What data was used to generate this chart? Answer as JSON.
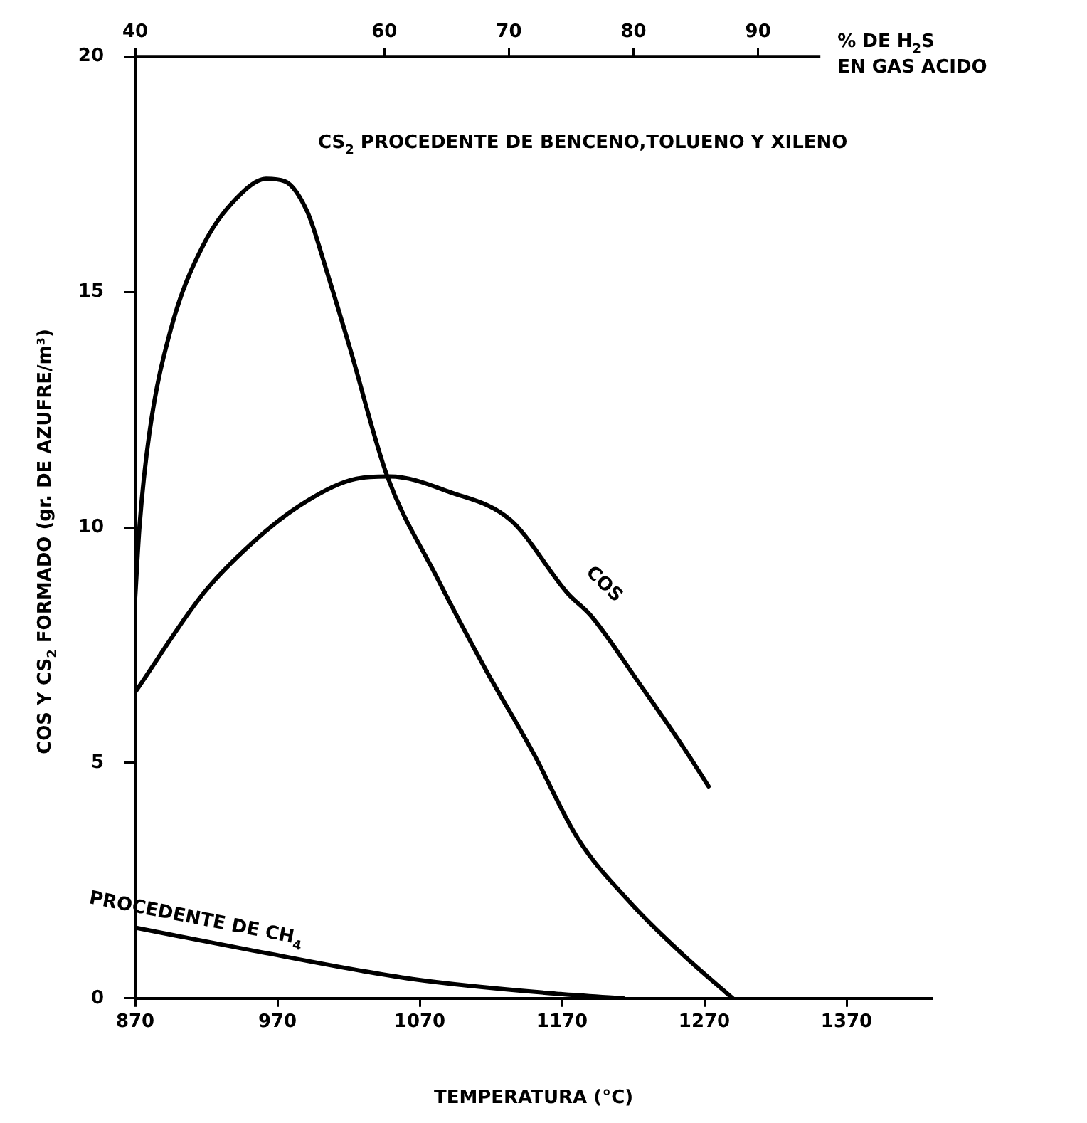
{
  "chart_data": {
    "type": "line",
    "xlabel": "TEMPERATURA (°C)",
    "ylabel": "COS Y CS$_{2}$ FORMADO (gr. DE AZUFRE/m³)",
    "x2label": "% DE H$_{2}$S EN GAS ACIDO",
    "xlim": [
      870,
      1430
    ],
    "xticks": [
      870,
      970,
      1070,
      1170,
      1270,
      1370
    ],
    "ylim": [
      0,
      20
    ],
    "yticks": [
      0,
      5,
      10,
      15,
      20
    ],
    "x2lim": [
      40,
      95
    ],
    "x2ticks": [
      40,
      60,
      70,
      80,
      90
    ],
    "grid": false,
    "legend": false,
    "marker": "none",
    "line_style": "solid",
    "series": [
      {
        "name": "CS$_{2}$ PROCEDENTE DE BENCENO,TOLUENO Y XILENO",
        "color": "#000000",
        "x": [
          870,
          873,
          880,
          895,
          918,
          945,
          962,
          975,
          991,
          1004,
          1021,
          1047,
          1081,
          1116,
          1150,
          1181,
          1219,
          1256,
          1290
        ],
        "values": [
          8.5,
          10,
          12,
          14.2,
          16.0,
          17.1,
          17.4,
          17.35,
          16.7,
          15.5,
          13.8,
          11.1,
          9.0,
          7.0,
          5.2,
          3.4,
          2.0,
          0.9,
          0
        ]
      },
      {
        "name": "COS",
        "color": "#000000",
        "x": [
          870,
          918,
          952,
          985,
          1021,
          1049,
          1091,
          1134,
          1174,
          1191,
          1224,
          1256,
          1273
        ],
        "values": [
          6.5,
          8.6,
          9.66,
          10.45,
          11.0,
          11.08,
          10.75,
          10.15,
          8.6,
          8.1,
          6.7,
          5.3,
          4.5
        ]
      },
      {
        "name": "PROCEDENTE DE CH$_{4}$",
        "color": "#000000",
        "x": [
          870,
          950,
          1065,
          1169,
          1213
        ],
        "values": [
          1.5,
          1.03,
          0.41,
          0.09,
          0
        ]
      }
    ]
  }
}
